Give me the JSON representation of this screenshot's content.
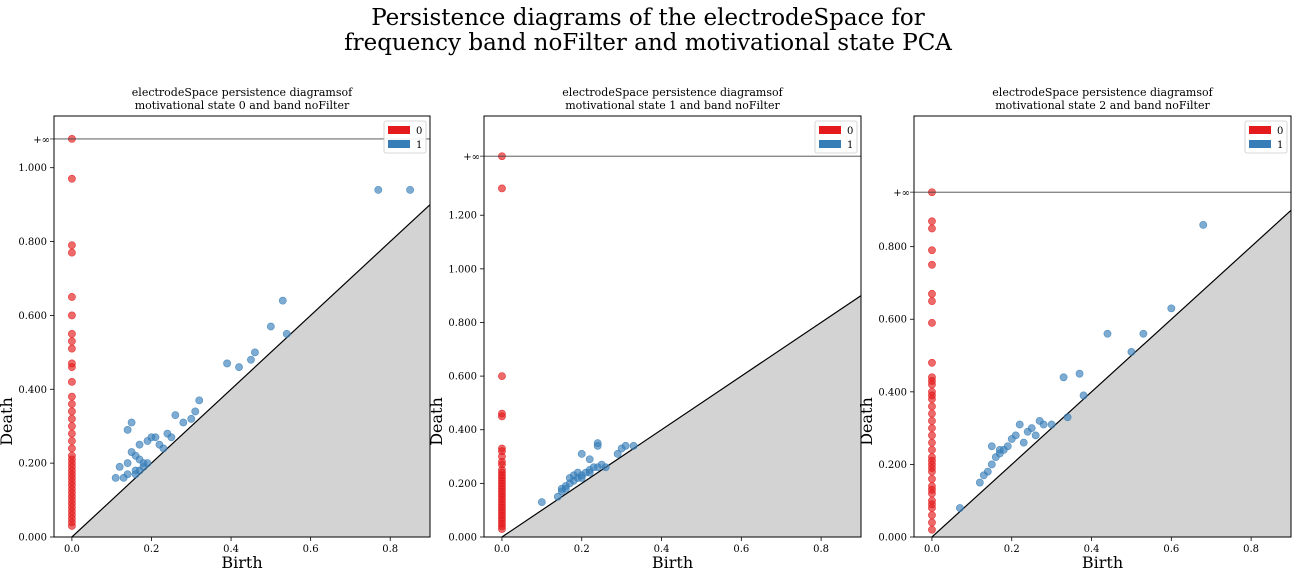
{
  "suptitle": {
    "line1": "Persistence diagrams of the electrodeSpace for",
    "line2": "frequency band noFilter and motivational state PCA"
  },
  "colors": {
    "dim0": "#e41a1c",
    "dim1": "#377eb8",
    "diagonal_fill": "#d3d3d3"
  },
  "chart_data": [
    {
      "type": "scatter",
      "title_line1": "electrodeSpace persistence diagramsof",
      "title_line2": "motivational state 0 and band noFilter",
      "xlabel": "Birth",
      "ylabel": "Death",
      "xlim": [
        -0.045,
        0.9
      ],
      "ylim": [
        0,
        1.14
      ],
      "xticks": [
        "0.0",
        "0.2",
        "0.4",
        "0.6",
        "0.8"
      ],
      "yticks": [
        "0.000",
        "0.200",
        "0.400",
        "0.600",
        "0.800",
        "1.000"
      ],
      "inf_label": "+∞",
      "inf_level": 1.078,
      "legend": [
        "0",
        "1"
      ],
      "series": [
        {
          "name": "0",
          "x": [
            0,
            0,
            0,
            0,
            0,
            0,
            0,
            0,
            0,
            0,
            0,
            0,
            0,
            0,
            0,
            0,
            0,
            0,
            0,
            0,
            0,
            0,
            0,
            0,
            0,
            0,
            0,
            0,
            0,
            0,
            0,
            0,
            0,
            0,
            0,
            0,
            0,
            0,
            0,
            0
          ],
          "y": [
            1.078,
            0.97,
            0.79,
            0.77,
            0.65,
            0.6,
            0.55,
            0.53,
            0.51,
            0.47,
            0.46,
            0.42,
            0.38,
            0.36,
            0.34,
            0.32,
            0.3,
            0.28,
            0.26,
            0.24,
            0.22,
            0.21,
            0.2,
            0.19,
            0.18,
            0.17,
            0.16,
            0.15,
            0.14,
            0.13,
            0.12,
            0.11,
            0.1,
            0.09,
            0.08,
            0.07,
            0.06,
            0.05,
            0.04,
            0.03
          ]
        },
        {
          "name": "1",
          "x": [
            0.77,
            0.85,
            0.53,
            0.5,
            0.54,
            0.39,
            0.42,
            0.45,
            0.46,
            0.32,
            0.31,
            0.26,
            0.28,
            0.3,
            0.15,
            0.14,
            0.2,
            0.21,
            0.19,
            0.17,
            0.24,
            0.22,
            0.15,
            0.16,
            0.14,
            0.17,
            0.18,
            0.12,
            0.11,
            0.13,
            0.16,
            0.19,
            0.23,
            0.25,
            0.16,
            0.17,
            0.18,
            0.14
          ],
          "y": [
            0.94,
            0.94,
            0.64,
            0.57,
            0.55,
            0.47,
            0.46,
            0.48,
            0.5,
            0.37,
            0.34,
            0.33,
            0.31,
            0.32,
            0.31,
            0.29,
            0.27,
            0.27,
            0.26,
            0.25,
            0.28,
            0.25,
            0.23,
            0.22,
            0.2,
            0.21,
            0.19,
            0.19,
            0.16,
            0.16,
            0.18,
            0.2,
            0.24,
            0.27,
            0.17,
            0.18,
            0.2,
            0.17
          ]
        }
      ]
    },
    {
      "type": "scatter",
      "title_line1": "electrodeSpace persistence diagramsof",
      "title_line2": "motivational state 1 and band noFilter",
      "xlabel": "Birth",
      "ylabel": "Death",
      "xlim": [
        -0.045,
        0.9
      ],
      "ylim": [
        0,
        1.57
      ],
      "xticks": [
        "0.0",
        "0.2",
        "0.4",
        "0.6",
        "0.8"
      ],
      "yticks": [
        "0.000",
        "0.200",
        "0.400",
        "0.600",
        "0.800",
        "1.000",
        "1.200"
      ],
      "inf_label": "+∞",
      "inf_level": 1.42,
      "legend": [
        "0",
        "1"
      ],
      "series": [
        {
          "name": "0",
          "x": [
            0,
            0,
            0,
            0,
            0,
            0,
            0,
            0,
            0,
            0,
            0,
            0,
            0,
            0,
            0,
            0,
            0,
            0,
            0,
            0,
            0,
            0,
            0,
            0,
            0,
            0,
            0,
            0,
            0,
            0,
            0,
            0,
            0
          ],
          "y": [
            1.42,
            1.3,
            0.6,
            0.46,
            0.45,
            0.33,
            0.32,
            0.3,
            0.28,
            0.27,
            0.25,
            0.24,
            0.23,
            0.22,
            0.21,
            0.2,
            0.19,
            0.18,
            0.17,
            0.16,
            0.15,
            0.14,
            0.13,
            0.12,
            0.11,
            0.1,
            0.09,
            0.08,
            0.07,
            0.06,
            0.05,
            0.04,
            0.03
          ]
        },
        {
          "name": "1",
          "x": [
            0.24,
            0.24,
            0.3,
            0.31,
            0.33,
            0.29,
            0.2,
            0.22,
            0.25,
            0.26,
            0.1,
            0.14,
            0.15,
            0.16,
            0.17,
            0.18,
            0.19,
            0.2,
            0.21,
            0.22,
            0.23,
            0.17,
            0.18,
            0.19,
            0.16,
            0.15,
            0.2,
            0.22,
            0.24
          ],
          "y": [
            0.35,
            0.34,
            0.33,
            0.34,
            0.34,
            0.31,
            0.31,
            0.29,
            0.27,
            0.26,
            0.13,
            0.15,
            0.17,
            0.18,
            0.2,
            0.21,
            0.22,
            0.23,
            0.24,
            0.25,
            0.26,
            0.22,
            0.23,
            0.24,
            0.19,
            0.18,
            0.22,
            0.24,
            0.26
          ]
        }
      ]
    },
    {
      "type": "scatter",
      "title_line1": "electrodeSpace persistence diagramsof",
      "title_line2": "motivational state 2 and band noFilter",
      "xlabel": "Birth",
      "ylabel": "Death",
      "xlim": [
        -0.045,
        0.9
      ],
      "ylim": [
        0,
        1.16
      ],
      "xticks": [
        "0.0",
        "0.2",
        "0.4",
        "0.6",
        "0.8"
      ],
      "yticks": [
        "0.000",
        "0.200",
        "0.400",
        "0.600",
        "0.800"
      ],
      "inf_label": "+∞",
      "inf_level": 0.95,
      "legend": [
        "0",
        "1"
      ],
      "series": [
        {
          "name": "0",
          "x": [
            0,
            0,
            0,
            0,
            0,
            0,
            0,
            0,
            0,
            0,
            0,
            0,
            0,
            0,
            0,
            0,
            0,
            0,
            0,
            0,
            0,
            0,
            0,
            0,
            0,
            0,
            0,
            0,
            0,
            0,
            0,
            0,
            0,
            0,
            0,
            0,
            0
          ],
          "y": [
            0.95,
            0.87,
            0.85,
            0.79,
            0.75,
            0.67,
            0.65,
            0.59,
            0.48,
            0.44,
            0.43,
            0.42,
            0.4,
            0.39,
            0.38,
            0.36,
            0.34,
            0.32,
            0.3,
            0.28,
            0.26,
            0.24,
            0.22,
            0.21,
            0.2,
            0.19,
            0.18,
            0.16,
            0.14,
            0.13,
            0.12,
            0.1,
            0.09,
            0.08,
            0.06,
            0.04,
            0.02
          ]
        },
        {
          "name": "1",
          "x": [
            0.68,
            0.6,
            0.53,
            0.5,
            0.44,
            0.38,
            0.37,
            0.33,
            0.34,
            0.3,
            0.28,
            0.27,
            0.25,
            0.24,
            0.22,
            0.21,
            0.2,
            0.19,
            0.18,
            0.17,
            0.16,
            0.15,
            0.14,
            0.13,
            0.12,
            0.07,
            0.15,
            0.17,
            0.23,
            0.26
          ],
          "y": [
            0.86,
            0.63,
            0.56,
            0.51,
            0.56,
            0.39,
            0.45,
            0.44,
            0.33,
            0.31,
            0.31,
            0.32,
            0.3,
            0.29,
            0.31,
            0.28,
            0.27,
            0.25,
            0.24,
            0.23,
            0.22,
            0.2,
            0.18,
            0.17,
            0.15,
            0.08,
            0.25,
            0.24,
            0.26,
            0.28
          ]
        }
      ]
    }
  ]
}
